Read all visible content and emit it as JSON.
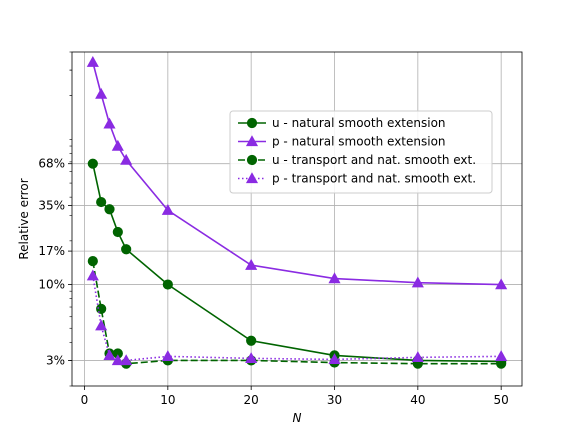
{
  "chart_data": {
    "type": "line",
    "title": "",
    "xlabel": "N",
    "ylabel": "Relative error",
    "xlim": [
      -1.5,
      52.5
    ],
    "ylim": [
      2.0,
      400
    ],
    "yscale": "log",
    "grid": true,
    "legend_position": "upper-right",
    "xticks": [
      0,
      10,
      20,
      30,
      40,
      50
    ],
    "xtick_labels": [
      "0",
      "10",
      "20",
      "30",
      "40",
      "50"
    ],
    "yticks": [
      3,
      10,
      17,
      35,
      68
    ],
    "ytick_labels": [
      "3%",
      "10%",
      "17%",
      "35%",
      "68%"
    ],
    "series": [
      {
        "name": "u - natural smooth extension",
        "color": "#006400",
        "linestyle": "solid",
        "marker": "circle",
        "x": [
          1,
          2,
          3,
          4,
          5,
          10,
          20,
          30,
          40,
          50
        ],
        "y": [
          68,
          37,
          33,
          23,
          17.5,
          10,
          4.1,
          3.25,
          3.0,
          2.95
        ]
      },
      {
        "name": "p - natural smooth extension",
        "color": "#8a2be2",
        "linestyle": "solid",
        "marker": "triangle",
        "x": [
          1,
          2,
          3,
          4,
          5,
          10,
          20,
          30,
          40,
          50
        ],
        "y": [
          340,
          205,
          128,
          90,
          72,
          32.5,
          13.6,
          11.0,
          10.3,
          10.0
        ]
      },
      {
        "name": "u - transport and nat. smooth ext.",
        "color": "#006400",
        "linestyle": "dashed",
        "marker": "circle",
        "x": [
          1,
          2,
          3,
          4,
          5,
          10,
          20,
          30,
          40,
          50
        ],
        "y": [
          14.5,
          6.8,
          3.35,
          3.35,
          2.85,
          3.0,
          3.0,
          2.9,
          2.85,
          2.85
        ]
      },
      {
        "name": "p - transport and nat. smooth ext.",
        "color": "#8a2be2",
        "linestyle": "dotted",
        "marker": "triangle",
        "x": [
          1,
          2,
          3,
          4,
          5,
          10,
          20,
          30,
          40,
          50
        ],
        "y": [
          11.5,
          5.2,
          3.25,
          3.0,
          3.0,
          3.2,
          3.1,
          3.05,
          3.15,
          3.2
        ]
      }
    ]
  }
}
